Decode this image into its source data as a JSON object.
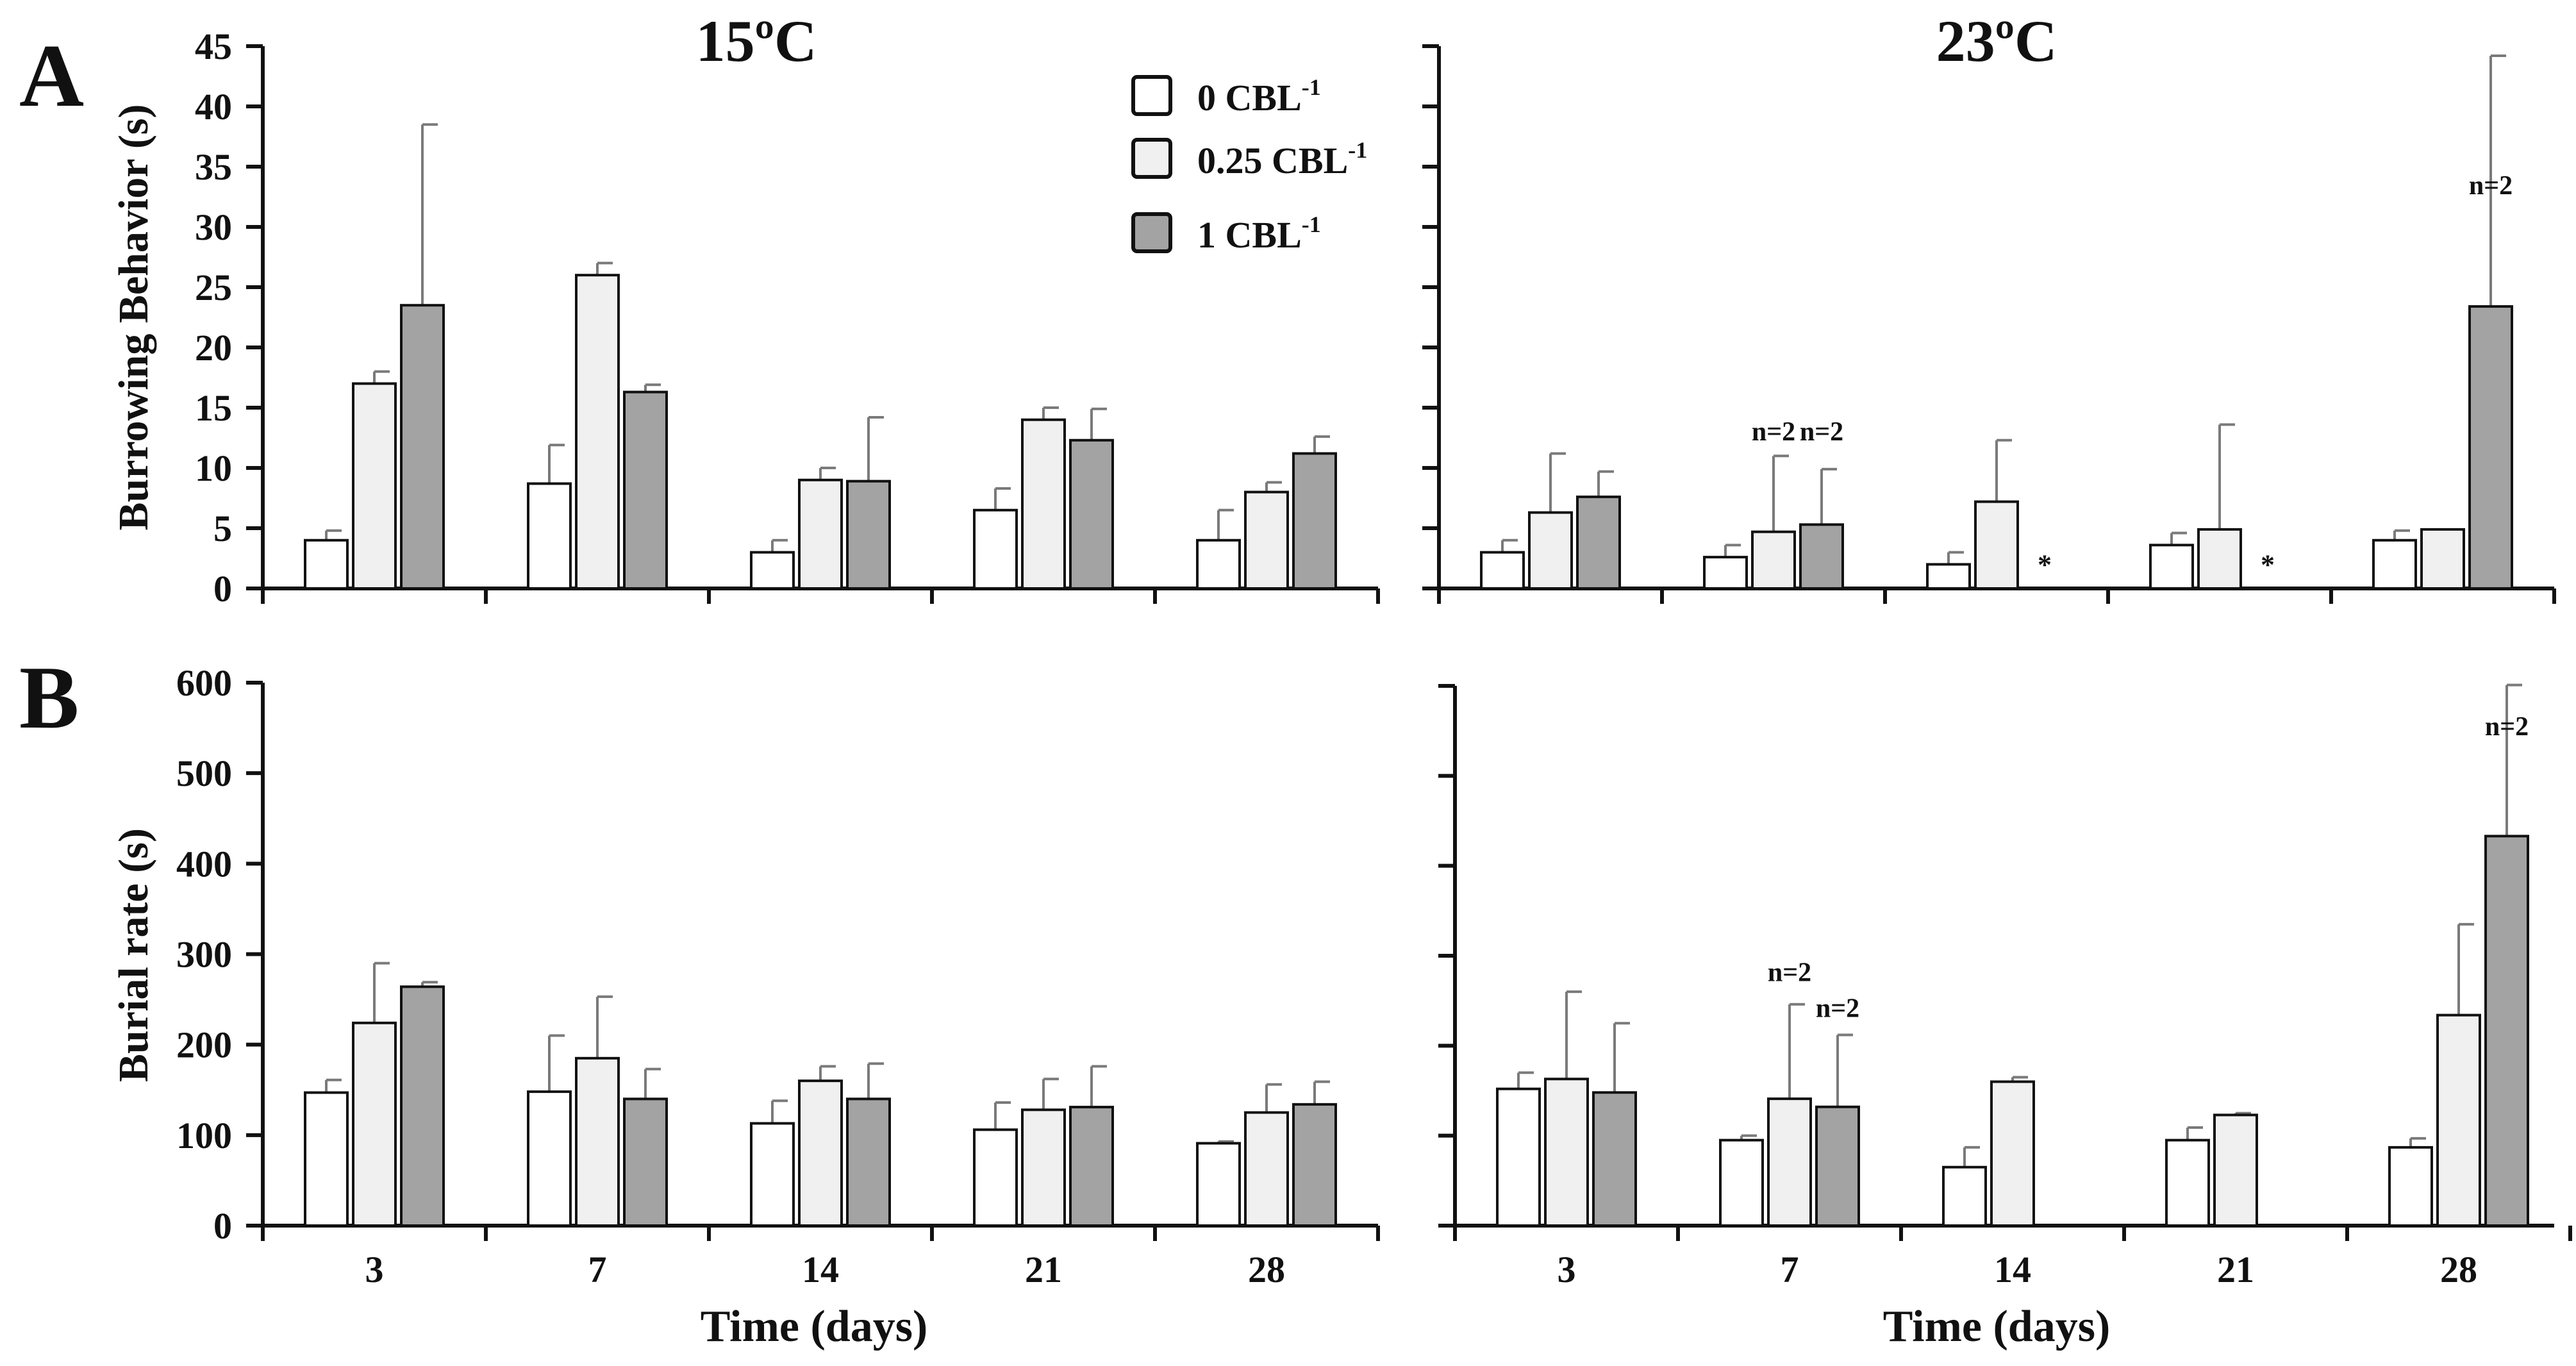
{
  "figure": {
    "panel_labels": [
      "A",
      "B"
    ],
    "colors": {
      "0 CBL-1": "#ffffff",
      "0.25 CBL-1": "#f0f0f0",
      "1 CBL-1": "#a3a3a3",
      "stroke": "#111111",
      "error_bar": "#7a7a7a"
    }
  },
  "chart_data": [
    {
      "id": "A-15",
      "type": "bar",
      "panel": "A",
      "title": "15ºC",
      "ylabel": "Burrowing Behavior (s)",
      "xlabel": "",
      "ylim": [
        0,
        45
      ],
      "yticks": [
        0,
        5,
        10,
        15,
        20,
        25,
        30,
        35,
        40,
        45
      ],
      "categories": [
        "3",
        "7",
        "14",
        "21",
        "28"
      ],
      "legend": "top-right",
      "series": [
        {
          "name": "0 CBL",
          "unit": "-1",
          "values": [
            4,
            8.7,
            3,
            6.5,
            4
          ],
          "errors": [
            0.8,
            3.2,
            1,
            1.8,
            2.5
          ]
        },
        {
          "name": "0.25 CBL",
          "unit": "-1",
          "values": [
            17,
            26,
            9,
            14,
            8
          ],
          "errors": [
            1,
            1,
            1,
            1,
            0.8
          ]
        },
        {
          "name": "1 CBL",
          "unit": "-1",
          "values": [
            23.5,
            16.3,
            8.9,
            12.3,
            11.2
          ],
          "errors": [
            15,
            0.6,
            5.3,
            2.6,
            1.4
          ]
        }
      ],
      "annotations": []
    },
    {
      "id": "A-23",
      "type": "bar",
      "panel": "A",
      "title": "23ºC",
      "ylabel": "",
      "xlabel": "",
      "ylim": [
        0,
        45
      ],
      "yticks": [
        0,
        5,
        10,
        15,
        20,
        25,
        30,
        35,
        40,
        45
      ],
      "categories": [
        "3",
        "7",
        "14",
        "21",
        "28"
      ],
      "series": [
        {
          "name": "0 CBL",
          "values": [
            3,
            2.6,
            2,
            3.6,
            4
          ],
          "errors": [
            1,
            1,
            1,
            1,
            0.8
          ]
        },
        {
          "name": "0.25 CBL",
          "values": [
            6.3,
            4.7,
            7.2,
            4.9,
            4.9
          ],
          "errors": [
            4.9,
            6.3,
            5.1,
            8.7,
            0
          ]
        },
        {
          "name": "1 CBL",
          "values": [
            7.6,
            5.3,
            null,
            null,
            23.4
          ],
          "errors": [
            2.1,
            4.6,
            null,
            null,
            20.8
          ]
        }
      ],
      "annotations": [
        {
          "text": "n=2",
          "category": "7",
          "series": "0.25 CBL",
          "y": 12.3
        },
        {
          "text": "n=2",
          "category": "7",
          "series": "1 CBL",
          "y": 12.3
        },
        {
          "text": "*",
          "category": "14",
          "series": "1 CBL",
          "y": 1.2
        },
        {
          "text": "*",
          "category": "21",
          "series": "1 CBL",
          "y": 1.2
        },
        {
          "text": "n=2",
          "category": "28",
          "series": "1 CBL",
          "y": 32.7
        }
      ]
    },
    {
      "id": "B-15",
      "type": "bar",
      "panel": "B",
      "title": "",
      "ylabel": "Burial rate (s)",
      "xlabel": "Time (days)",
      "ylim": [
        0,
        600
      ],
      "yticks": [
        0,
        100,
        200,
        300,
        400,
        500,
        600
      ],
      "categories": [
        "3",
        "7",
        "14",
        "21",
        "28"
      ],
      "series": [
        {
          "name": "0 CBL",
          "values": [
            147,
            148,
            113,
            106,
            91
          ],
          "errors": [
            14,
            62,
            25,
            30,
            2
          ]
        },
        {
          "name": "0.25 CBL",
          "values": [
            224,
            185,
            160,
            128,
            125
          ],
          "errors": [
            66,
            68,
            16,
            34,
            31
          ]
        },
        {
          "name": "1 CBL",
          "values": [
            264,
            140,
            140,
            131,
            134
          ],
          "errors": [
            5,
            33,
            39,
            45,
            25
          ]
        }
      ],
      "annotations": []
    },
    {
      "id": "B-23",
      "type": "bar",
      "panel": "B",
      "title": "",
      "ylabel": "",
      "xlabel": "Time (days)",
      "ylim": [
        0,
        600
      ],
      "yticks": [
        0,
        100,
        200,
        300,
        400,
        500,
        600
      ],
      "categories": [
        "3",
        "7",
        "14",
        "21",
        "28"
      ],
      "series": [
        {
          "name": "0 CBL",
          "values": [
            152,
            95,
            65,
            95,
            87
          ],
          "errors": [
            18,
            5,
            22,
            14,
            10
          ]
        },
        {
          "name": "0.25 CBL",
          "values": [
            163,
            141,
            160,
            123,
            234
          ],
          "errors": [
            97,
            105,
            5,
            2,
            101
          ]
        },
        {
          "name": "1 CBL",
          "values": [
            148,
            132,
            null,
            null,
            433
          ],
          "errors": [
            77,
            80,
            null,
            null,
            168
          ]
        }
      ],
      "annotations": [
        {
          "text": "n=2",
          "category": "7",
          "series": "0.25 CBL",
          "y": 272
        },
        {
          "text": "n=2",
          "category": "7",
          "series": "1 CBL",
          "y": 232
        },
        {
          "text": "n=2",
          "category": "28",
          "series": "1 CBL",
          "y": 545
        }
      ]
    }
  ]
}
